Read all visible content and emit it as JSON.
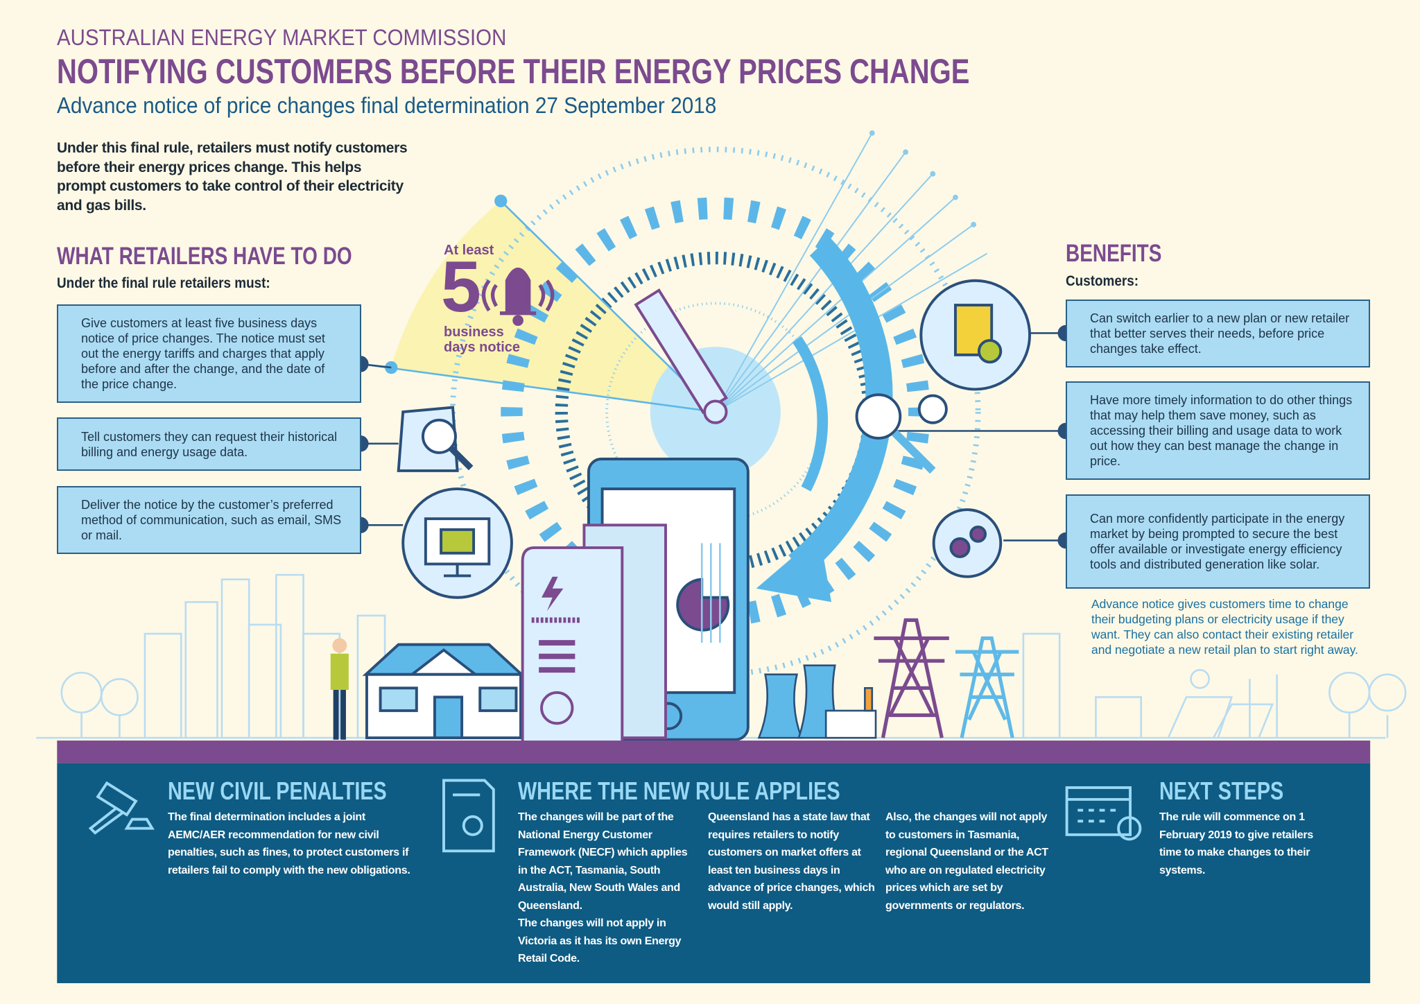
{
  "header": {
    "organization": "AUSTRALIAN ENERGY MARKET COMMISSION",
    "title": "NOTIFYING CUSTOMERS BEFORE THEIR ENERGY PRICES CHANGE",
    "subtitle": "Advance notice of price changes final determination 27 September 2018"
  },
  "intro": "Under this final rule, retailers must notify customers before their energy prices change. This helps prompt customers to take control of their electricity and gas bills.",
  "retailers": {
    "heading": "WHAT RETAILERS HAVE TO DO",
    "lead": "Under the final rule retailers must:",
    "items": [
      "Give customers at least five business days notice of price changes. The notice must set out the energy tariffs and charges that apply before and after the change, and the date of the price change.",
      "Tell customers they can request their historical billing and energy usage data.",
      "Deliver the notice by the customer’s preferred method of communication, such as email, SMS or mail."
    ]
  },
  "notice": {
    "prefix": "At least",
    "days": 5,
    "suffix": "business days notice"
  },
  "benefits": {
    "heading": "BENEFITS",
    "lead": "Customers:",
    "items": [
      "Can switch earlier to a new plan or new retailer that better serves their needs, before price changes take effect.",
      "Have more timely information to do other things that may help them save money, such as accessing their billing and usage data to work out how they can best manage the change in price.",
      "Can more confidently participate in the energy market by being prompted to secure the best offer available or investigate energy efficiency tools and distributed generation like solar."
    ],
    "note": "Advance notice gives customers time to change their budgeting plans or electricity usage if they want. They can also contact their existing retailer and negotiate a new retail plan to start right away."
  },
  "penalties": {
    "heading": "NEW CIVIL PENALTIES",
    "text": "The final determination includes a joint AEMC/AER recommendation for new civil penalties, such as fines, to protect customers if retailers fail to comply with the new obligations."
  },
  "applies": {
    "heading": "WHERE THE NEW RULE APPLIES",
    "columns": [
      [
        "The changes will be part of the National Energy Customer Framework (NECF) which applies in the ACT, Tasmania, South Australia, New South Wales and Queensland.",
        "The changes will not apply in Victoria as it has its own Energy Retail Code."
      ],
      [
        "Queensland has a state law that requires retailers to notify customers on market offers at least ten business days in advance of price changes, which would still apply."
      ],
      [
        "Also, the changes will not apply to customers in Tasmania, regional Queensland or the ACT who are on regulated electricity prices which are set by governments or regulators."
      ]
    ]
  },
  "next_steps": {
    "heading": "NEXT STEPS",
    "text": "The rule will commence on 1 February 2019 to give retailers time to make changes to their systems."
  }
}
